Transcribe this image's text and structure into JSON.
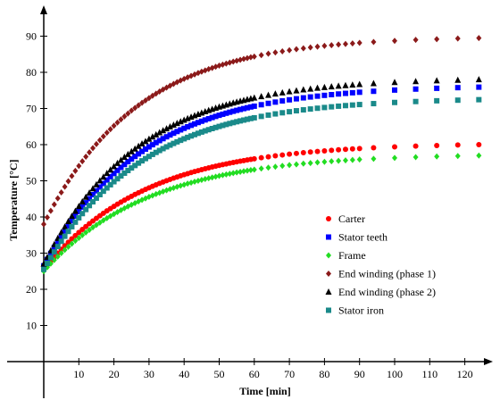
{
  "chart_data": {
    "type": "scatter",
    "title": "",
    "xlabel": "Time [min]",
    "ylabel": "Temperature [°C]",
    "xlim": [
      -8,
      126
    ],
    "ylim": [
      -3,
      102
    ],
    "x_ticks": [
      10,
      20,
      30,
      40,
      50,
      60,
      70,
      80,
      90,
      100,
      110,
      120
    ],
    "y_ticks": [
      10,
      20,
      30,
      40,
      50,
      60,
      70,
      80,
      90
    ],
    "grid": false,
    "legend_position": "lower-right",
    "series": [
      {
        "name": "Carter",
        "marker": "circle",
        "color": "#ff0000",
        "T0": 25.5,
        "Tinf": 60.5,
        "tau": 29,
        "step": 2
      },
      {
        "name": "Stator teeth",
        "marker": "square",
        "color": "#0000ff",
        "T0": 26.5,
        "Tinf": 76.5,
        "tau": 28,
        "step": 2
      },
      {
        "name": "Frame",
        "marker": "diamond",
        "color": "#22dd22",
        "T0": 25.0,
        "Tinf": 57.5,
        "tau": 30,
        "step": 2
      },
      {
        "name": "End winding (phase 1)",
        "marker": "diamond",
        "color": "#8b1a1a",
        "T0": 38.0,
        "Tinf": 90.0,
        "tau": 27,
        "step": 2
      },
      {
        "name": "End winding (phase 2)",
        "marker": "triangle",
        "color": "#000000",
        "T0": 27.0,
        "Tinf": 78.5,
        "tau": 27,
        "step": 2
      },
      {
        "name": "Stator iron",
        "marker": "square",
        "color": "#1a8a8a",
        "T0": 25.5,
        "Tinf": 73.0,
        "tau": 28,
        "step": 2
      }
    ]
  }
}
